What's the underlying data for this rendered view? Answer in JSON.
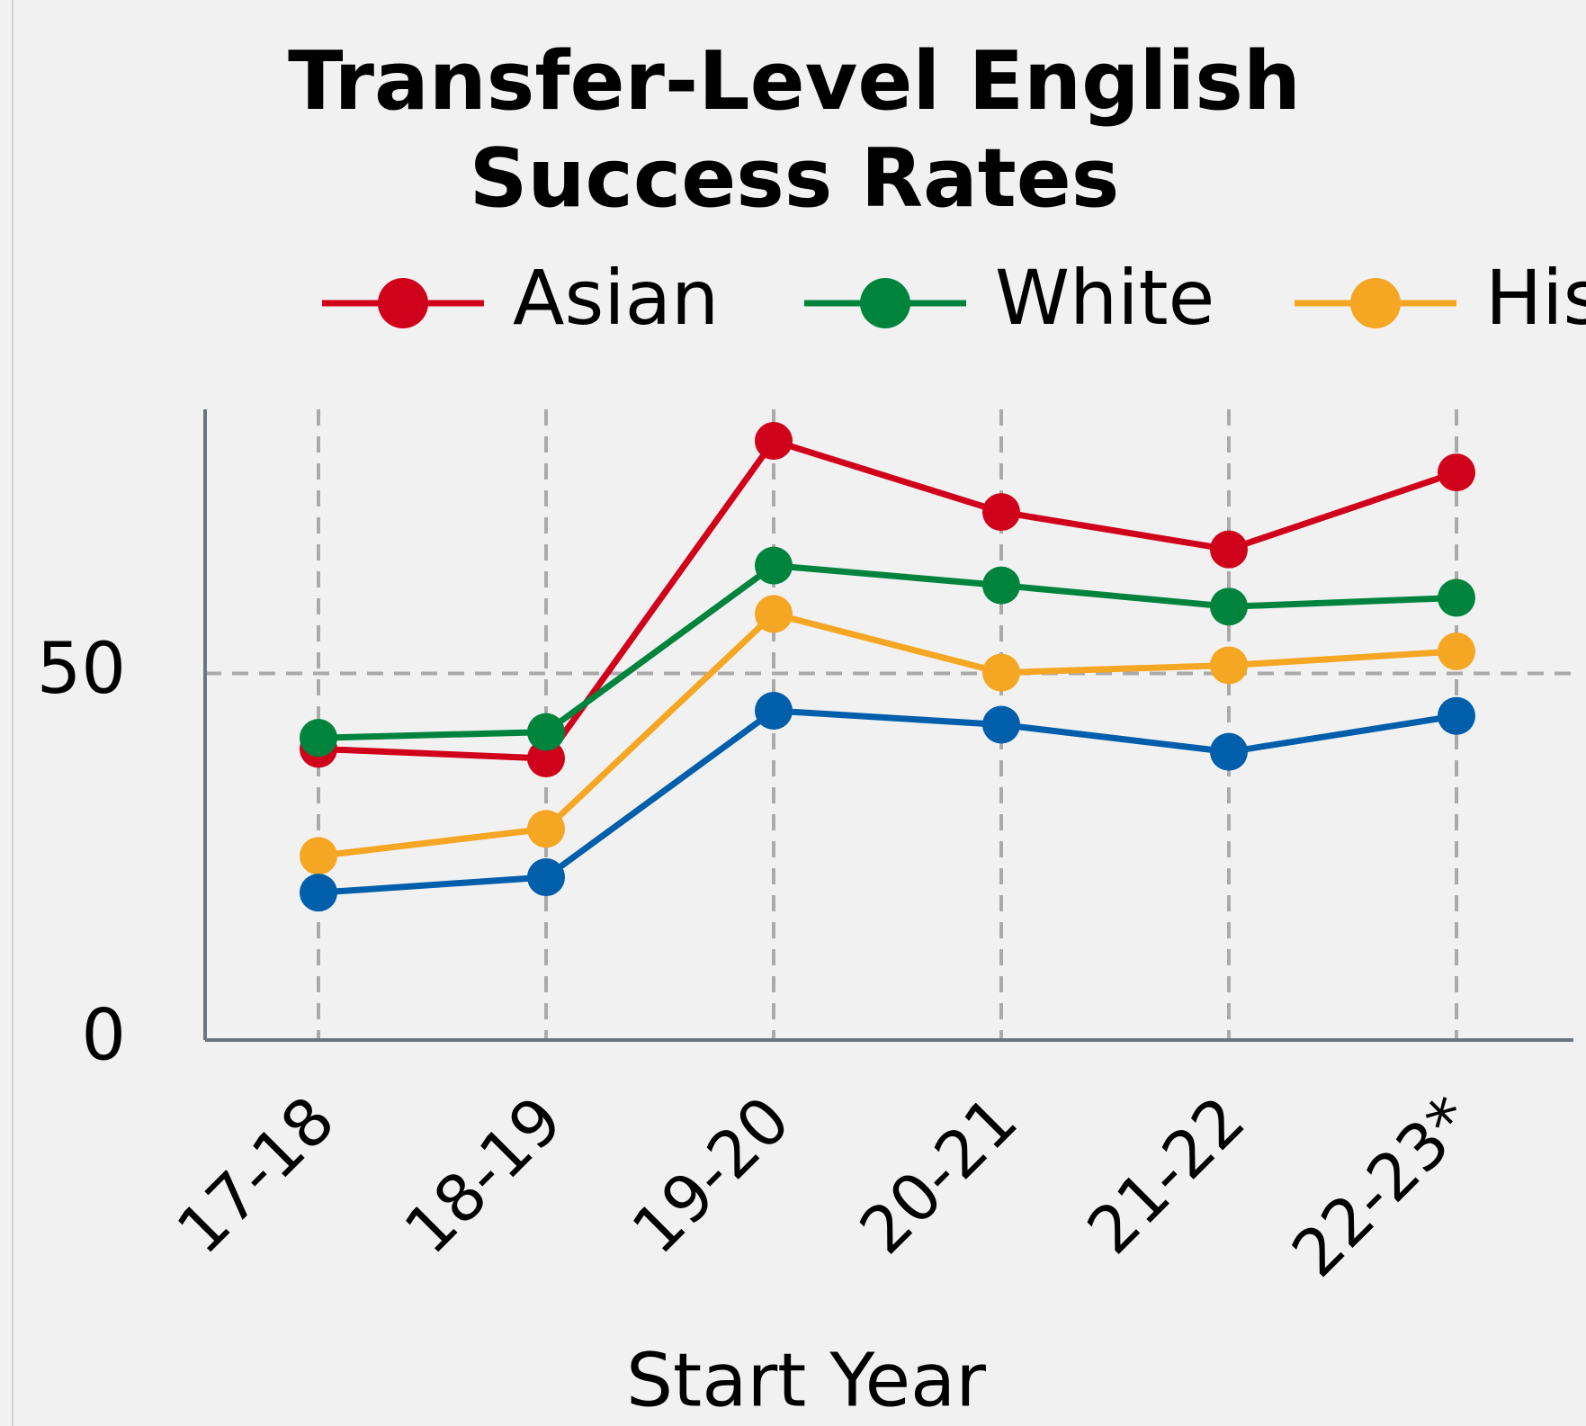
{
  "chart_data": {
    "type": "line",
    "title": [
      "Transfer-Level English",
      "Success Rates"
    ],
    "x_label": "Start Year",
    "categories": [
      "17-18",
      "18-19",
      "19-20",
      "20-21",
      "21-22",
      "22-23*"
    ],
    "series": [
      {
        "name": "Asian",
        "color": "#d0021b",
        "values": [
          39.7,
          38.4,
          81.7,
          72.0,
          66.9,
          77.4
        ]
      },
      {
        "name": "White",
        "color": "#00843d",
        "values": [
          41.2,
          42.0,
          64.7,
          62.0,
          59.1,
          60.3
        ]
      },
      {
        "name": "His",
        "color": "#f5a623",
        "values": [
          25.1,
          28.8,
          58.1,
          50.1,
          51.1,
          53.0
        ]
      },
      {
        "color": "#005eaa",
        "values": [
          20.1,
          22.2,
          44.9,
          43.0,
          39.3,
          44.2
        ]
      }
    ],
    "ylim": [
      0,
      86
    ],
    "yticks": [
      0,
      50
    ],
    "grid": true
  }
}
